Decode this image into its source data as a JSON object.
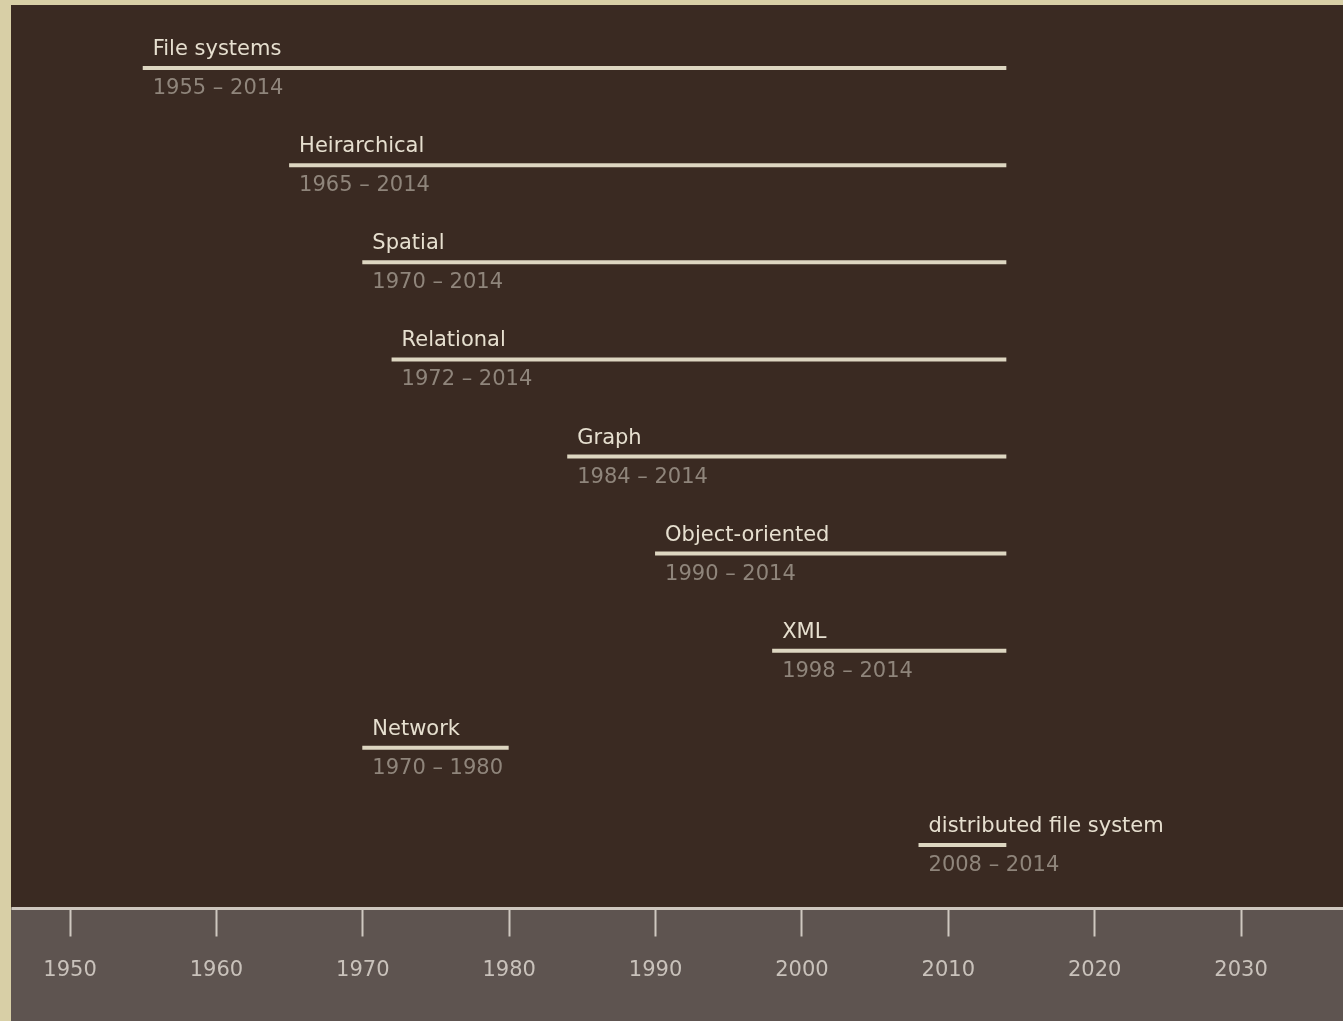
{
  "chart_data": {
    "type": "bar",
    "orientation": "horizontal",
    "categories": [
      "File systems",
      "Heirarchical",
      "Spatial",
      "Relational",
      "Graph",
      "Object-oriented",
      "XML",
      "Network",
      "distributed file system"
    ],
    "base": [
      1955,
      1965,
      1970,
      1972,
      1984,
      1990,
      1998,
      1970,
      2008
    ],
    "values": [
      59,
      49,
      44,
      42,
      30,
      24,
      16,
      10,
      6
    ],
    "annotations": [
      "1955 – 2014",
      "1965 – 2014",
      "1970 – 2014",
      "1972 – 2014",
      "1984 – 2014",
      "1990 – 2014",
      "1998 – 2014",
      "1970 – 1980",
      "2008 – 2014"
    ],
    "color": "#ddd6c1",
    "xlim": [
      1946,
      2037
    ],
    "xticks": [
      1950,
      1960,
      1970,
      1980,
      1990,
      2000,
      2010,
      2020,
      2030
    ],
    "grid": false
  }
}
